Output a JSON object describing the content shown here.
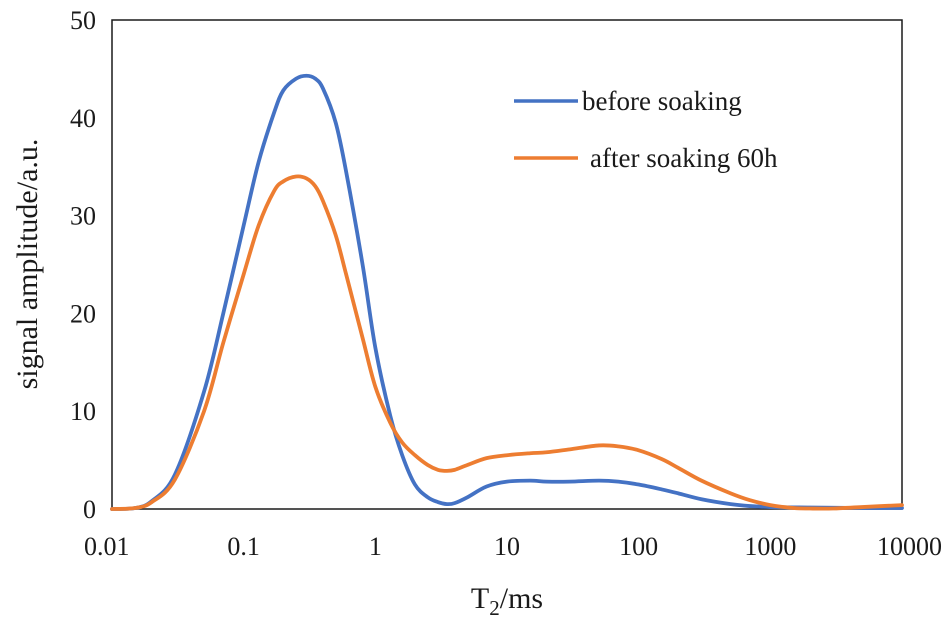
{
  "chart_data": {
    "type": "line",
    "title": "",
    "xlabel": "T2/ms",
    "xlabel_main": "T",
    "xlabel_sub": "2",
    "xlabel_rest": "/ms",
    "ylabel": "signal amplitude/a.u.",
    "xscale": "log",
    "xlim": [
      0.01,
      10000
    ],
    "ylim": [
      0,
      50
    ],
    "xticks": [
      0.01,
      0.1,
      1,
      10,
      100,
      1000,
      10000
    ],
    "xtick_labels": [
      "0.01",
      "0.1",
      "1",
      "10",
      "100",
      "1000",
      "10000"
    ],
    "yticks": [
      0,
      10,
      20,
      30,
      40,
      50
    ],
    "ytick_labels": [
      "0",
      "10",
      "20",
      "30",
      "40",
      "50"
    ],
    "grid": false,
    "legend_position": "top-right",
    "series": [
      {
        "name": "before soaking",
        "color": "#4472C4",
        "x": [
          0.01,
          0.015,
          0.02,
          0.03,
          0.05,
          0.07,
          0.1,
          0.13,
          0.17,
          0.2,
          0.25,
          0.3,
          0.35,
          0.4,
          0.5,
          0.6,
          0.8,
          1,
          1.3,
          1.6,
          2,
          2.5,
          3,
          3.5,
          4,
          5,
          7,
          10,
          15,
          20,
          30,
          50,
          70,
          100,
          150,
          200,
          300,
          500,
          700,
          1000,
          2000,
          5000,
          10000
        ],
        "y": [
          0,
          0.1,
          0.8,
          3.5,
          12,
          20,
          29,
          35.5,
          40.5,
          42.8,
          44,
          44.3,
          44,
          43,
          39.5,
          34.5,
          25,
          16.5,
          9.5,
          5.5,
          2.5,
          1.2,
          0.7,
          0.5,
          0.6,
          1.2,
          2.3,
          2.8,
          2.9,
          2.8,
          2.8,
          2.9,
          2.8,
          2.5,
          2,
          1.6,
          1,
          0.5,
          0.3,
          0.2,
          0.15,
          0.1,
          0.1
        ]
      },
      {
        "name": "after soaking 60h",
        "color": "#ED7D31",
        "x": [
          0.01,
          0.015,
          0.02,
          0.03,
          0.05,
          0.07,
          0.1,
          0.13,
          0.17,
          0.2,
          0.25,
          0.3,
          0.35,
          0.4,
          0.5,
          0.6,
          0.8,
          1,
          1.3,
          1.6,
          2,
          2.5,
          3,
          3.5,
          4,
          5,
          7,
          10,
          15,
          20,
          30,
          50,
          70,
          100,
          150,
          200,
          300,
          500,
          700,
          1000,
          1500,
          2000,
          3000,
          5000,
          10000
        ],
        "y": [
          0,
          0.1,
          0.7,
          3,
          10,
          17,
          24,
          29,
          32.5,
          33.5,
          34,
          33.8,
          33,
          31.5,
          28,
          24,
          17.5,
          12.5,
          8.8,
          6.8,
          5.5,
          4.5,
          4,
          3.9,
          4,
          4.5,
          5.2,
          5.5,
          5.7,
          5.8,
          6.1,
          6.5,
          6.4,
          6,
          5.1,
          4.2,
          2.9,
          1.6,
          0.9,
          0.4,
          0.1,
          0.05,
          0.05,
          0.2,
          0.4
        ]
      }
    ]
  }
}
